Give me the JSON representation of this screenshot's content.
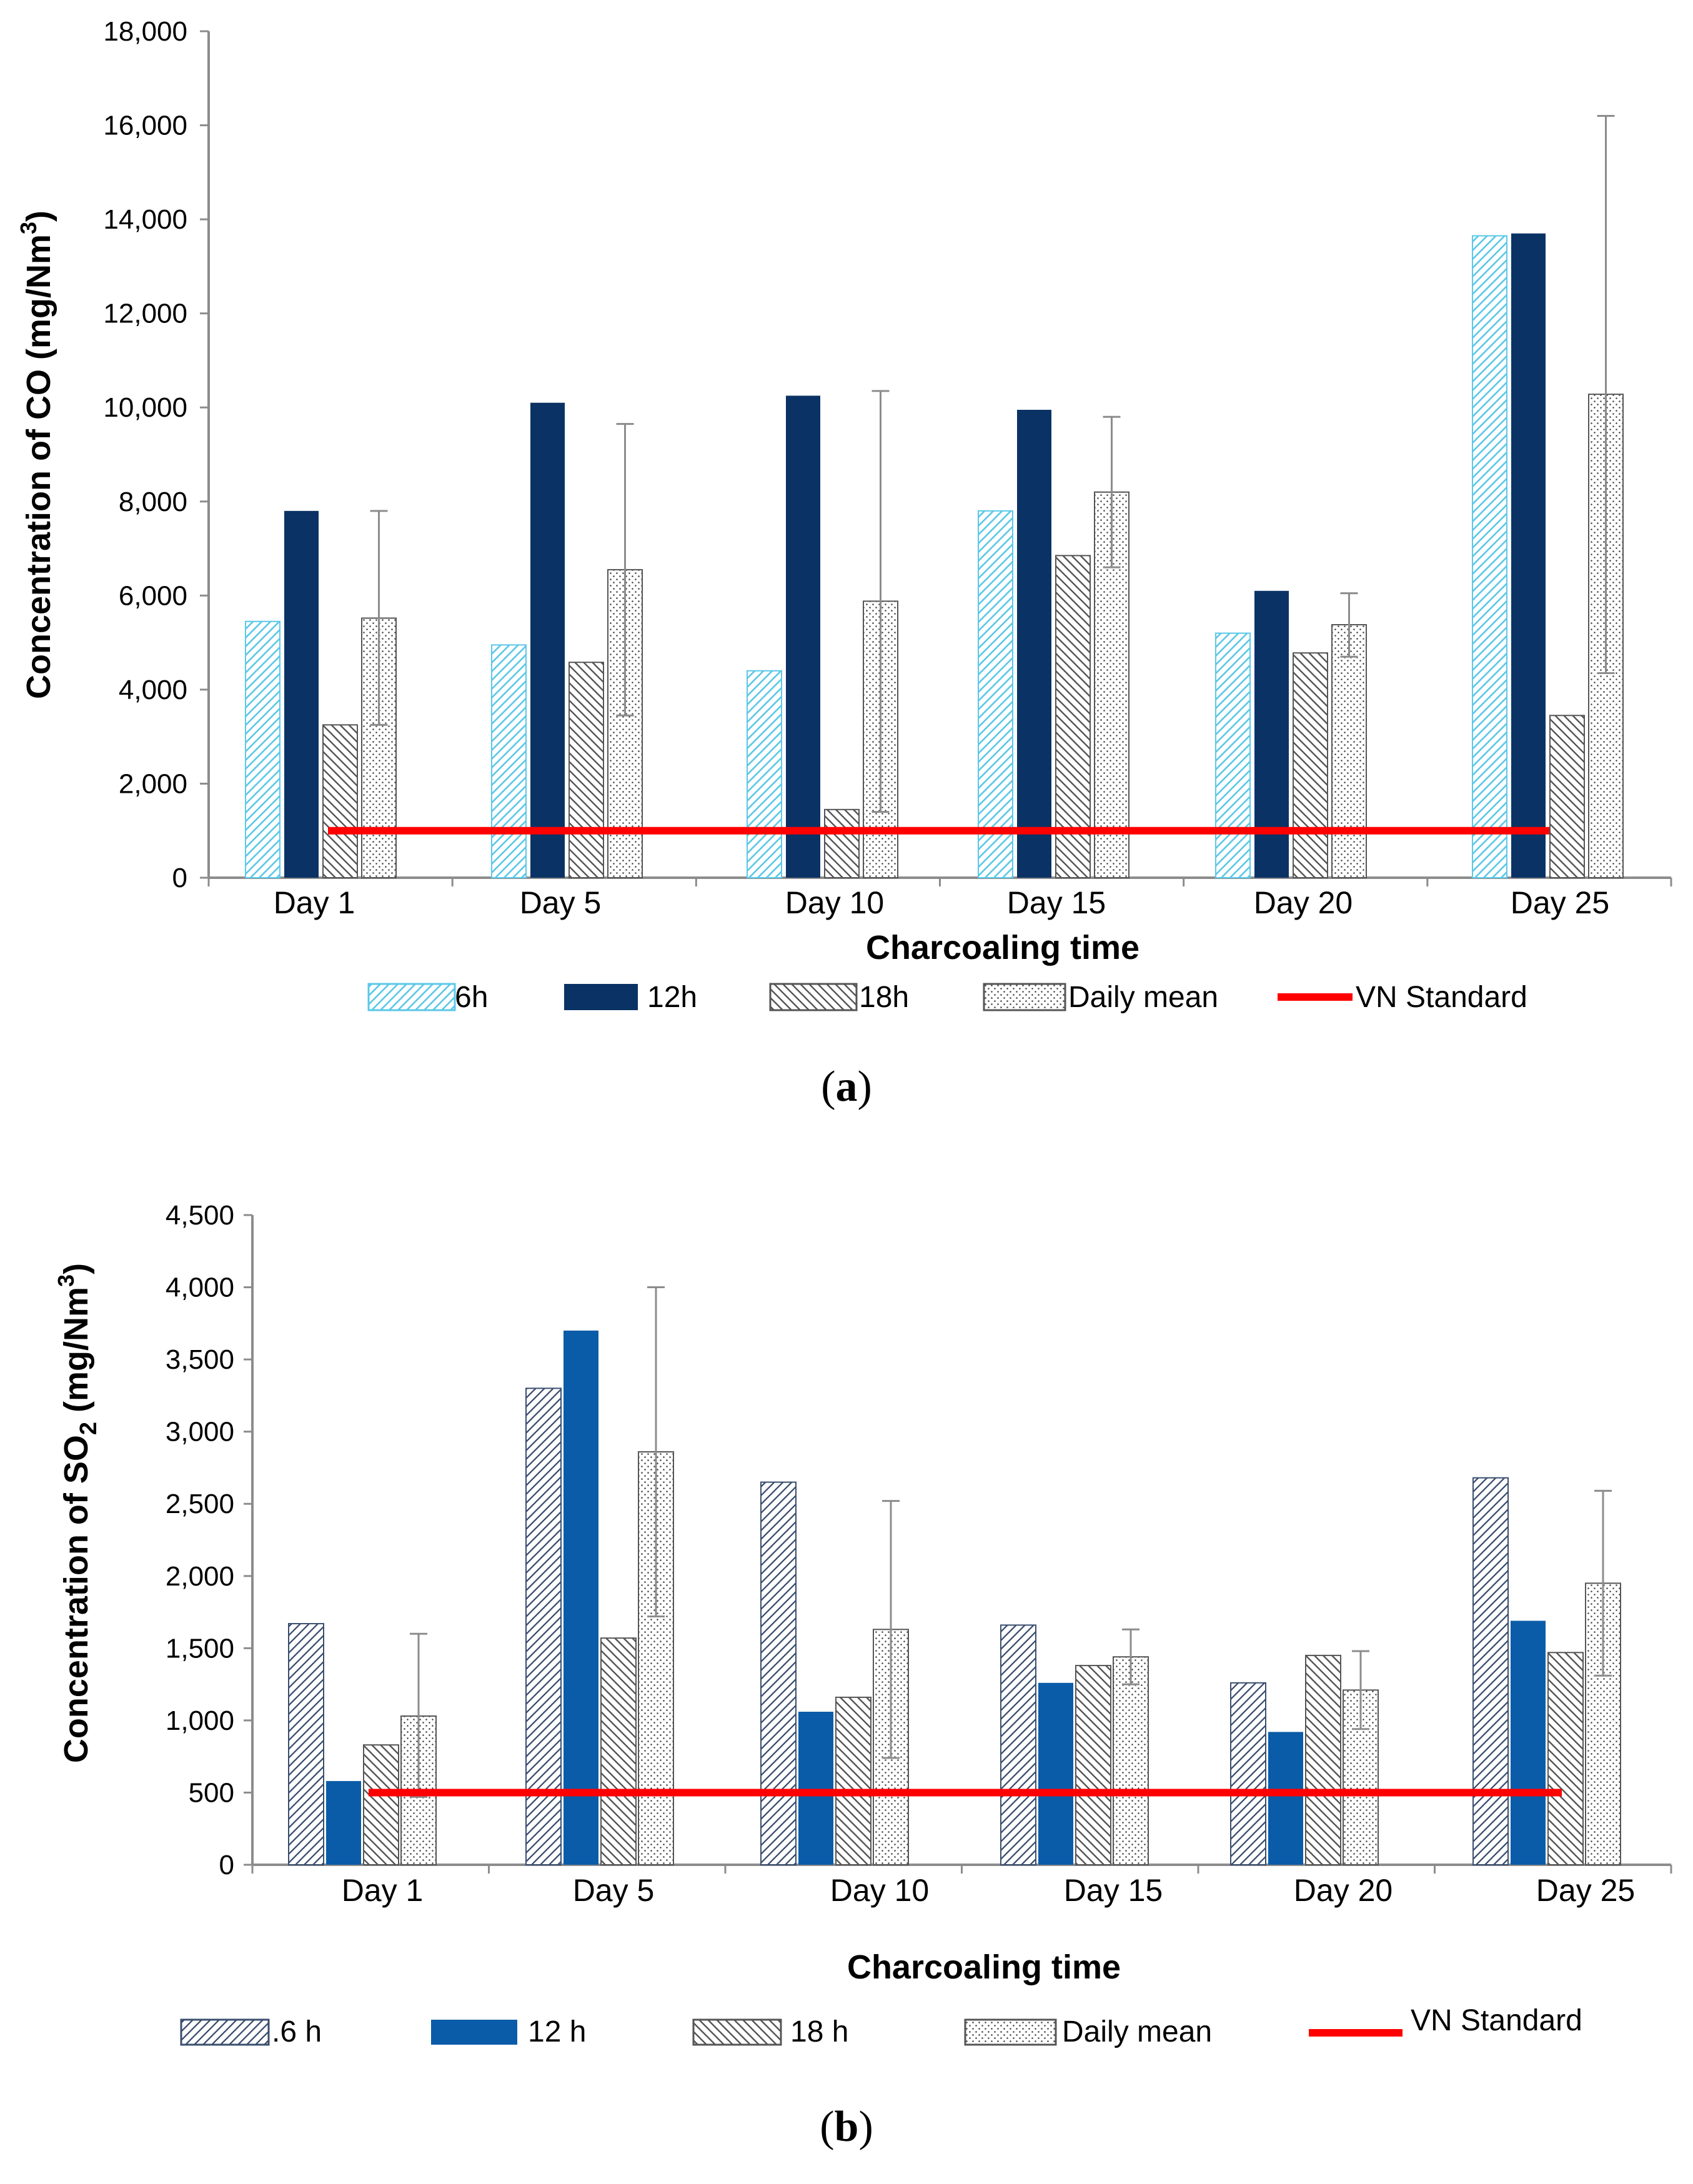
{
  "chart_data": [
    {
      "id": "a",
      "type": "bar",
      "categories": [
        "Day 1",
        "Day 5",
        "Day 10",
        "Day 15",
        "Day 20",
        "Day 25"
      ],
      "series": [
        {
          "name": "6h",
          "values": [
            5450,
            4950,
            4400,
            7800,
            5200,
            13650
          ]
        },
        {
          "name": "12h",
          "values": [
            7800,
            10100,
            10250,
            9950,
            6100,
            13700
          ]
        },
        {
          "name": "18h",
          "values": [
            3250,
            4580,
            1450,
            6850,
            4780,
            3450
          ]
        },
        {
          "name": "Daily mean",
          "values": [
            5520,
            6550,
            5880,
            8200,
            5380,
            10280
          ],
          "error_high": [
            7800,
            9650,
            10350,
            9800,
            6050,
            16200
          ],
          "error_low": [
            3250,
            3450,
            1400,
            6600,
            4700,
            4350
          ]
        }
      ],
      "standard": {
        "name": "VN Standard",
        "value": 1000
      },
      "xlabel": "Charcoaling time",
      "ylabel_text": "Concentration of CO (mg/Nm",
      "ylabel_sup": "3",
      "ylabel_end": ")",
      "ylim": [
        0,
        18000
      ],
      "yticks": [
        "0",
        "2,000",
        "4,000",
        "6,000",
        "8,000",
        "10,000",
        "12,000",
        "14,000",
        "16,000",
        "18,000"
      ],
      "legend": [
        "6h",
        "12h",
        "18h",
        "Daily mean",
        "VN Standard"
      ]
    },
    {
      "id": "b",
      "type": "bar",
      "categories": [
        "Day 1",
        "Day 5",
        "Day 10",
        "Day 15",
        "Day 20",
        "Day 25"
      ],
      "series": [
        {
          "name": "6 h",
          "values": [
            1670,
            3300,
            2650,
            1660,
            1260,
            2680
          ]
        },
        {
          "name": "12 h",
          "values": [
            580,
            3700,
            1060,
            1260,
            920,
            1690
          ]
        },
        {
          "name": "18 h",
          "values": [
            830,
            1570,
            1160,
            1380,
            1450,
            1470
          ]
        },
        {
          "name": "Daily mean",
          "values": [
            1030,
            2860,
            1630,
            1440,
            1210,
            1950
          ],
          "error_high": [
            1600,
            4000,
            2520,
            1630,
            1480,
            2590
          ],
          "error_low": [
            470,
            1720,
            740,
            1250,
            940,
            1310
          ]
        }
      ],
      "standard": {
        "name": "VN Standard",
        "value": 500
      },
      "xlabel": "Charcoaling time",
      "ylabel_text": "Concentration of SO",
      "ylabel_sub": "2",
      "ylabel_mid": " (mg/Nm",
      "ylabel_sup": "3",
      "ylabel_end": ")",
      "ylim": [
        0,
        4500
      ],
      "yticks": [
        "0",
        "500",
        "1,000",
        "1,500",
        "2,000",
        "2,500",
        "3,000",
        "3,500",
        "4,000",
        "4,500"
      ],
      "legend": [
        ".6 h",
        "12 h",
        "18 h",
        "Daily mean",
        "VN Standard"
      ]
    }
  ],
  "captions": {
    "a": {
      "open": "(",
      "letter": "a",
      "close": ")"
    },
    "b": {
      "open": "(",
      "letter": "b",
      "close": ")"
    }
  },
  "colors": {
    "light_blue_hatch": "#5bc8e8",
    "dark_navy": "#0a3264",
    "medium_blue": "#0b5ca8",
    "gray_hatch": "#555555",
    "standard_red": "#ff0000",
    "axis_gray": "#8c8c8c"
  }
}
